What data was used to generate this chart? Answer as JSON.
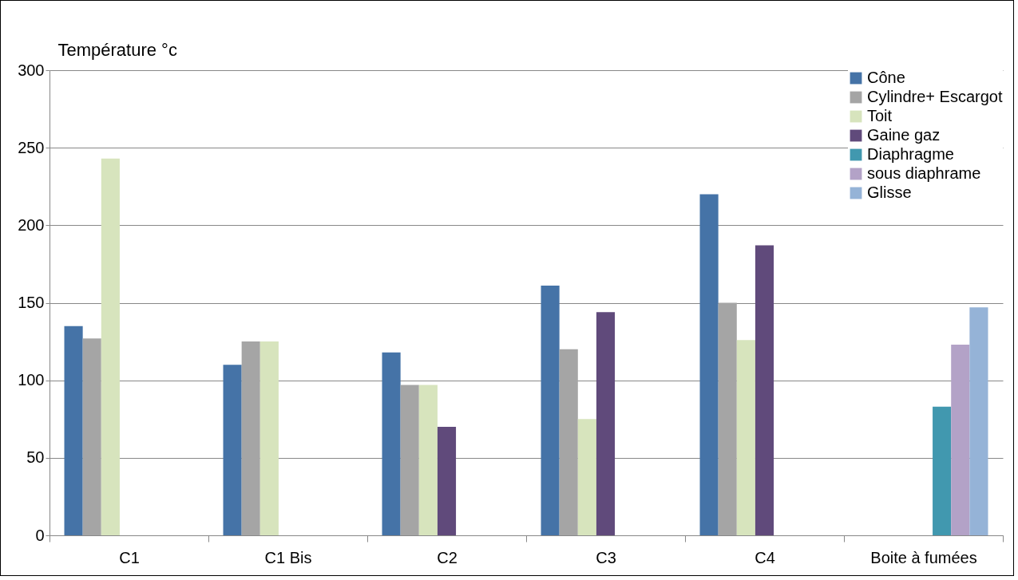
{
  "chart_data": {
    "type": "bar",
    "ylabel": "Température °c",
    "categories": [
      "C1",
      "C1 Bis",
      "C2",
      "C3",
      "C4",
      "Boite à fumées"
    ],
    "series": [
      {
        "name": "Cône",
        "color": "#4573a7",
        "values": [
          135,
          110,
          118,
          161,
          220,
          null
        ]
      },
      {
        "name": "Cylindre+ Escargot",
        "color": "#a5a5a5",
        "values": [
          127,
          125,
          97,
          120,
          150,
          null
        ]
      },
      {
        "name": "Toit",
        "color": "#d7e4bd",
        "values": [
          243,
          125,
          97,
          75,
          126,
          null
        ]
      },
      {
        "name": "Gaine gaz",
        "color": "#604a7b",
        "values": [
          null,
          null,
          70,
          144,
          187,
          null
        ]
      },
      {
        "name": "Diaphragme",
        "color": "#4198af",
        "values": [
          null,
          null,
          null,
          null,
          null,
          83
        ]
      },
      {
        "name": "sous diaphrame",
        "color": "#b3a2c7",
        "values": [
          null,
          null,
          null,
          null,
          null,
          123
        ]
      },
      {
        "name": "Glisse",
        "color": "#95b3d7",
        "values": [
          null,
          null,
          null,
          null,
          null,
          147
        ]
      }
    ],
    "ylim": [
      0,
      300
    ],
    "yticks": [
      0,
      50,
      100,
      150,
      200,
      250,
      300
    ],
    "grid": "y",
    "legend": "top right"
  }
}
